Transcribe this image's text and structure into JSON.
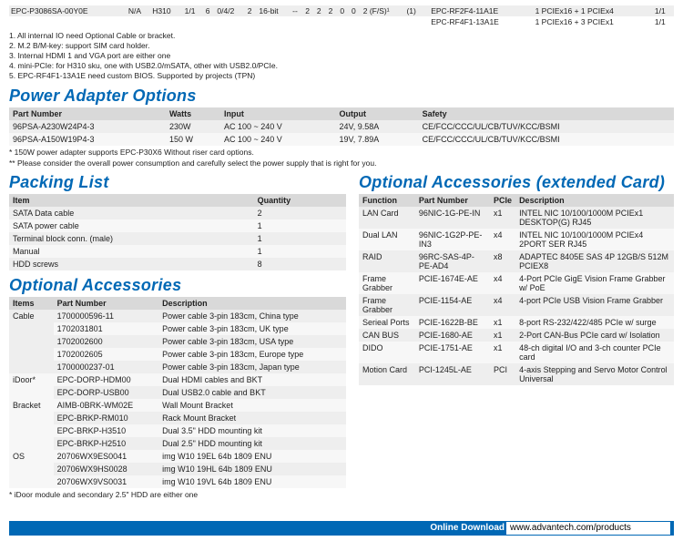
{
  "top_rows": [
    {
      "alt": false,
      "cells": [
        "EPC-P3086SA-00Y0E",
        "N/A",
        "H310",
        "1/1",
        "6",
        "0/4/2",
        "2",
        "16-bit",
        "--",
        "2",
        "2",
        "2",
        "0",
        "0",
        "2 (F/S)¹",
        "(1)",
        "",
        "EPC-RF2F4-11A1E",
        "1 PCIEx16 + 1 PCIEx4",
        "1/1"
      ]
    },
    {
      "alt": true,
      "cells": [
        "",
        "",
        "",
        "",
        "",
        "",
        "",
        "",
        "",
        "",
        "",
        "",
        "",
        "",
        "",
        "",
        "",
        "EPC-RF4F1-13A1E",
        "1 PCIEx16 + 3 PCIEx1",
        "1/1"
      ]
    }
  ],
  "notes": [
    "1. All internal IO need Optional Cable or bracket.",
    "2. M.2 B/M-key: support SIM card holder.",
    "3. Internal HDMI 1 and VGA port are either one",
    "4. mini-PCIe: for H310 sku, one with USB2.0/mSATA, other with USB2.0/PCIe.",
    "5. EPC-RF4F1-13A1E need custom BIOS. Supported by projects (TPN)"
  ],
  "power_adapter": {
    "title": "Power Adapter Options",
    "headers": [
      "Part Number",
      "Watts",
      "Input",
      "Output",
      "Safety"
    ],
    "rows": [
      [
        "96PSA-A230W24P4-3",
        "230W",
        "AC 100 ~ 240 V",
        "24V, 9.58A",
        "CE/FCC/CCC/UL/CB/TUV/KCC/BSMI"
      ],
      [
        "96PSA-A150W19P4-3",
        "150 W",
        "AC 100 ~ 240 V",
        "19V, 7.89A",
        "CE/FCC/CCC/UL/CB/TUV/KCC/BSMI"
      ]
    ],
    "footnotes": [
      "* 150W power adapter supports EPC-P30X6 Without riser card options.",
      "** Please consider the overall power consumption and carefully select the power supply that is right for you."
    ]
  },
  "packing": {
    "title": "Packing List",
    "headers": [
      "Item",
      "Quantity"
    ],
    "rows": [
      [
        "SATA Data cable",
        "2"
      ],
      [
        "SATA power cable",
        "1"
      ],
      [
        "Terminal block conn. (male)",
        "1"
      ],
      [
        "Manual",
        "1"
      ],
      [
        "HDD screws",
        "8"
      ]
    ]
  },
  "optional": {
    "title": "Optional Accessories",
    "headers": [
      "Items",
      "Part Number",
      "Description"
    ],
    "groups": [
      {
        "label": "Cable",
        "rows": [
          [
            "1700000596-11",
            "Power cable 3-pin 183cm, China type"
          ],
          [
            "1702031801",
            "Power cable 3-pin 183cm, UK type"
          ],
          [
            "1702002600",
            "Power cable 3-pin 183cm, USA type"
          ],
          [
            "1702002605",
            "Power cable 3-pin 183cm, Europe type"
          ],
          [
            "1700000237-01",
            "Power cable 3-pin 183cm, Japan type"
          ]
        ]
      },
      {
        "label": "iDoor*",
        "rows": [
          [
            "EPC-DORP-HDM00",
            "Dual HDMI cables and BKT"
          ],
          [
            "EPC-DORP-USB00",
            "Dual USB2.0 cable and BKT"
          ]
        ]
      },
      {
        "label": "Bracket",
        "rows": [
          [
            "AIMB-0BRK-WM02E",
            "Wall Mount Bracket"
          ],
          [
            "EPC-BRKP-RM010",
            "Rack Mount Bracket"
          ],
          [
            "EPC-BRKP-H3510",
            "Dual 3.5\" HDD mounting kit"
          ],
          [
            "EPC-BRKP-H2510",
            "Dual 2.5\" HDD mounting kit"
          ]
        ]
      },
      {
        "label": "OS",
        "rows": [
          [
            "20706WX9ES0041",
            "img W10 19EL 64b 1809 ENU"
          ],
          [
            "20706WX9HS0028",
            "img W10 19HL 64b 1809 ENU"
          ],
          [
            "20706WX9VS0031",
            "img W10 19VL 64b 1809 ENU"
          ]
        ]
      }
    ],
    "footnote": "* iDoor module and secondary 2.5\" HDD are either one"
  },
  "extended": {
    "title": "Optional Accessories (extended Card)",
    "headers": [
      "Function",
      "Part Number",
      "PCIe",
      "Description"
    ],
    "rows": [
      [
        "LAN Card",
        "96NIC-1G-PE-IN",
        "x1",
        "INTEL NIC 10/100/1000M PCIEx1 DESKTOP(G) RJ45"
      ],
      [
        "Dual LAN",
        "96NIC-1G2P-PE-IN3",
        "x4",
        "INTEL NIC 10/100/1000M PCIEx4 2PORT SER RJ45"
      ],
      [
        "RAID",
        "96RC-SAS-4P-PE-AD4",
        "x8",
        "ADAPTEC 8405E SAS 4P 12GB/S 512M PCIEX8"
      ],
      [
        "Frame Grabber",
        "PCIE-1674E-AE",
        "x4",
        "4-Port PCIe GigE Vision Frame Grabber w/ PoE"
      ],
      [
        "Frame Grabber",
        "PCIE-1154-AE",
        "x4",
        "4-port PCIe USB Vision Frame Grabber"
      ],
      [
        "Serieal Ports",
        "PCIE-1622B-BE",
        "x1",
        "8-port RS-232/422/485 PCIe w/ surge"
      ],
      [
        "CAN BUS",
        "PCIE-1680-AE",
        "x1",
        "2-Port CAN-Bus PCIe card w/ Isolation"
      ],
      [
        "DIDO",
        "PCIE-1751-AE",
        "x1",
        "48-ch digital I/O and 3-ch counter PCIe card"
      ],
      [
        "Motion Card",
        "PCI-1245L-AE",
        "PCI",
        "4-axis Stepping and Servo Motor Control Universal"
      ]
    ]
  },
  "download": {
    "label": "Online Download",
    "url": "www.advantech.com/products"
  }
}
